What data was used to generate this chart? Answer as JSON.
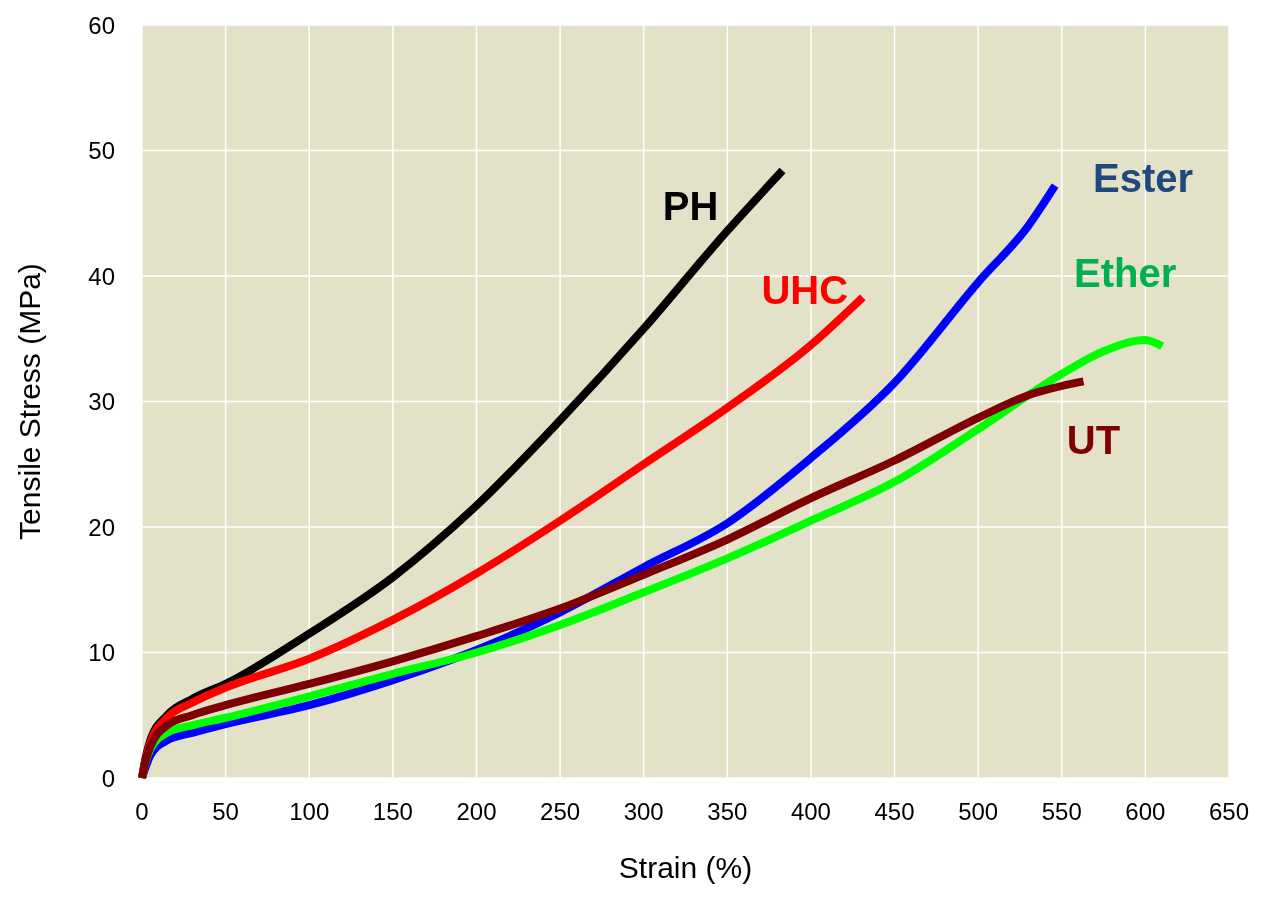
{
  "chart_data": {
    "type": "line",
    "xlabel": "Strain (%)",
    "ylabel": "Tensile Stress (MPa)",
    "xlim": [
      0,
      650
    ],
    "xticks": [
      0,
      50,
      100,
      150,
      200,
      250,
      300,
      350,
      400,
      450,
      500,
      550,
      600,
      650
    ],
    "ylim": [
      0,
      60
    ],
    "yticks": [
      0,
      10,
      20,
      30,
      40,
      50,
      60
    ],
    "grid": true,
    "marker": "none",
    "line_style": "solid",
    "series": [
      {
        "name": "PH",
        "color": "#000000",
        "x": [
          0,
          2,
          5,
          15,
          30,
          50,
          100,
          150,
          200,
          250,
          300,
          350,
          383
        ],
        "values": [
          0,
          1.5,
          3,
          5,
          6.3,
          7.5,
          11.5,
          16,
          21.7,
          28.5,
          35.8,
          43.6,
          48.4
        ]
      },
      {
        "name": "UHC",
        "color": "#ff0000",
        "x": [
          0,
          2,
          5,
          15,
          30,
          50,
          100,
          150,
          200,
          250,
          300,
          350,
          400,
          431
        ],
        "values": [
          0,
          1.4,
          2.8,
          4.8,
          6,
          7.2,
          9.5,
          12.6,
          16.3,
          20.5,
          25,
          29.5,
          34.5,
          38.3
        ]
      },
      {
        "name": "Ester",
        "color": "#0000ff",
        "x": [
          0,
          2,
          5,
          15,
          30,
          50,
          100,
          150,
          200,
          250,
          300,
          350,
          400,
          450,
          500,
          530,
          546
        ],
        "values": [
          0,
          0.8,
          1.8,
          3,
          3.6,
          4.3,
          5.8,
          7.8,
          10.2,
          13.2,
          16.8,
          20.3,
          25.5,
          31.5,
          39.5,
          44,
          47.2
        ]
      },
      {
        "name": "Ether",
        "color": "#00ff00",
        "x": [
          0,
          2,
          5,
          15,
          30,
          50,
          100,
          150,
          200,
          250,
          300,
          350,
          400,
          450,
          500,
          550,
          575,
          600,
          610
        ],
        "values": [
          0,
          1.2,
          2.3,
          3.6,
          4.2,
          4.8,
          6.5,
          8.3,
          10,
          12.2,
          14.8,
          17.5,
          20.5,
          23.6,
          27.8,
          32.2,
          34,
          34.9,
          34.4
        ]
      },
      {
        "name": "UT",
        "color": "#7f0000",
        "x": [
          0,
          2,
          5,
          15,
          30,
          50,
          100,
          150,
          200,
          250,
          300,
          350,
          400,
          450,
          500,
          530,
          563
        ],
        "values": [
          0,
          1.3,
          2.5,
          4.2,
          5,
          5.8,
          7.5,
          9.3,
          11.3,
          13.5,
          16.2,
          19,
          22.3,
          25.3,
          28.7,
          30.5,
          31.6
        ]
      }
    ]
  }
}
